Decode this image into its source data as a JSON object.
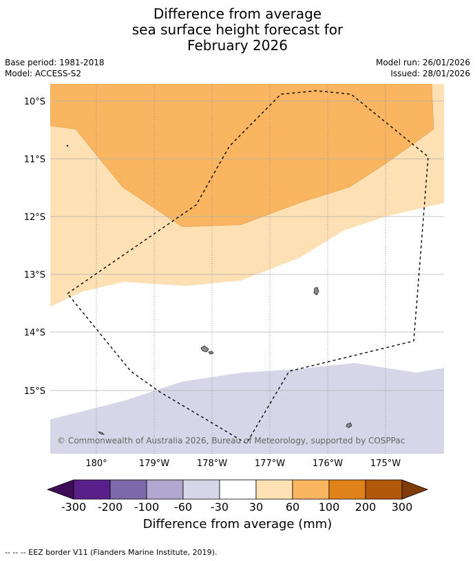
{
  "header": {
    "title_line1": "Difference from average",
    "title_line2": "sea surface height forecast for",
    "title_line3": "February 2026",
    "base_period": "Base period: 1981-2018",
    "model": "Model: ACCESS-S2",
    "model_run": "Model run: 26/01/2026",
    "issued": "Issued: 28/01/2026"
  },
  "map": {
    "lat_labels": [
      "10°S",
      "11°S",
      "12°S",
      "13°S",
      "14°S",
      "15°S"
    ],
    "lon_labels": [
      "180°",
      "179°W",
      "178°W",
      "177°W",
      "176°W",
      "175°W"
    ],
    "copyright": "© Commonwealth of Australia 2026, Bureau of Meteorology, supported by COSPPac",
    "colors": {
      "band_60_100": "#fab560",
      "band_30_60": "#fde0b4",
      "band_-60_-30": "#d6d6e8",
      "neutral": "#ffffff",
      "land": "#8a8a8a"
    }
  },
  "colorbar": {
    "labels": [
      "-300",
      "-200",
      "-100",
      "-60",
      "-30",
      "30",
      "60",
      "100",
      "200",
      "300"
    ],
    "colors": [
      "#3f0d57",
      "#59208a",
      "#7c6aab",
      "#b1a7d1",
      "#d6d6e8",
      "#ffffff",
      "#fde0b4",
      "#fab560",
      "#e0821a",
      "#b1580b",
      "#7f3b08"
    ],
    "title": "Difference from average (mm)"
  },
  "footnote": "--  --  -- EEZ border V11 (Flanders Marine Institute, 2019)."
}
